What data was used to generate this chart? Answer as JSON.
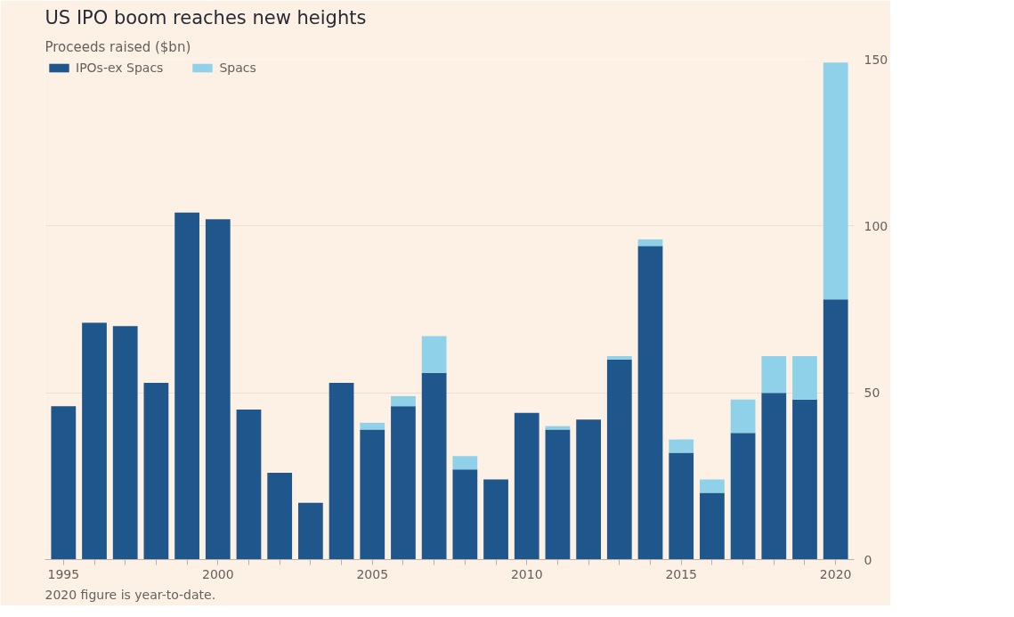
{
  "chart_data": {
    "type": "bar",
    "stacked": true,
    "title": "US IPO boom reaches new heights",
    "subtitle": "Proceeds raised ($bn)",
    "x": [
      1995,
      1996,
      1997,
      1998,
      1999,
      2000,
      2001,
      2002,
      2003,
      2004,
      2005,
      2006,
      2007,
      2008,
      2009,
      2010,
      2011,
      2012,
      2013,
      2014,
      2015,
      2016,
      2017,
      2018,
      2019,
      2020
    ],
    "series": [
      {
        "name": "IPOs-ex Spacs",
        "color": "#1f568c",
        "values": [
          46,
          71,
          70,
          53,
          104,
          102,
          45,
          26,
          17,
          53,
          39,
          46,
          56,
          27,
          24,
          44,
          39,
          42,
          60,
          94,
          32,
          20,
          38,
          50,
          48,
          78
        ]
      },
      {
        "name": "Spacs",
        "color": "#8fd1e8",
        "values": [
          null,
          null,
          null,
          null,
          null,
          null,
          null,
          null,
          null,
          null,
          2,
          3,
          11,
          4,
          null,
          null,
          1,
          null,
          1,
          2,
          4,
          4,
          10,
          11,
          13,
          71
        ]
      }
    ],
    "xlim": [
      1994.4,
      2020.6
    ],
    "xticks": [
      1995,
      {
        "value": 1996,
        "label": null
      },
      {
        "value": 1997,
        "label": null
      },
      {
        "value": 1998,
        "label": null
      },
      {
        "value": 1999,
        "label": null
      },
      2000,
      {
        "value": 2001,
        "label": null
      },
      {
        "value": 2002,
        "label": null
      },
      {
        "value": 2003,
        "label": null
      },
      {
        "value": 2004,
        "label": null
      },
      2005,
      {
        "value": 2006,
        "label": null
      },
      {
        "value": 2007,
        "label": null
      },
      {
        "value": 2008,
        "label": null
      },
      {
        "value": 2009,
        "label": null
      },
      2010,
      {
        "value": 2011,
        "label": null
      },
      {
        "value": 2012,
        "label": null
      },
      {
        "value": 2013,
        "label": null
      },
      {
        "value": 2014,
        "label": null
      },
      2015,
      {
        "value": 2016,
        "label": null
      },
      {
        "value": 2017,
        "label": null
      },
      {
        "value": 2018,
        "label": null
      },
      {
        "value": 2019,
        "label": null
      },
      2020
    ],
    "ylim": [
      0,
      150
    ],
    "yticks": [
      0,
      50,
      100,
      150
    ],
    "grid": "y",
    "legend": "top left",
    "annotations": [
      "2020 figure is year-to-date."
    ]
  }
}
